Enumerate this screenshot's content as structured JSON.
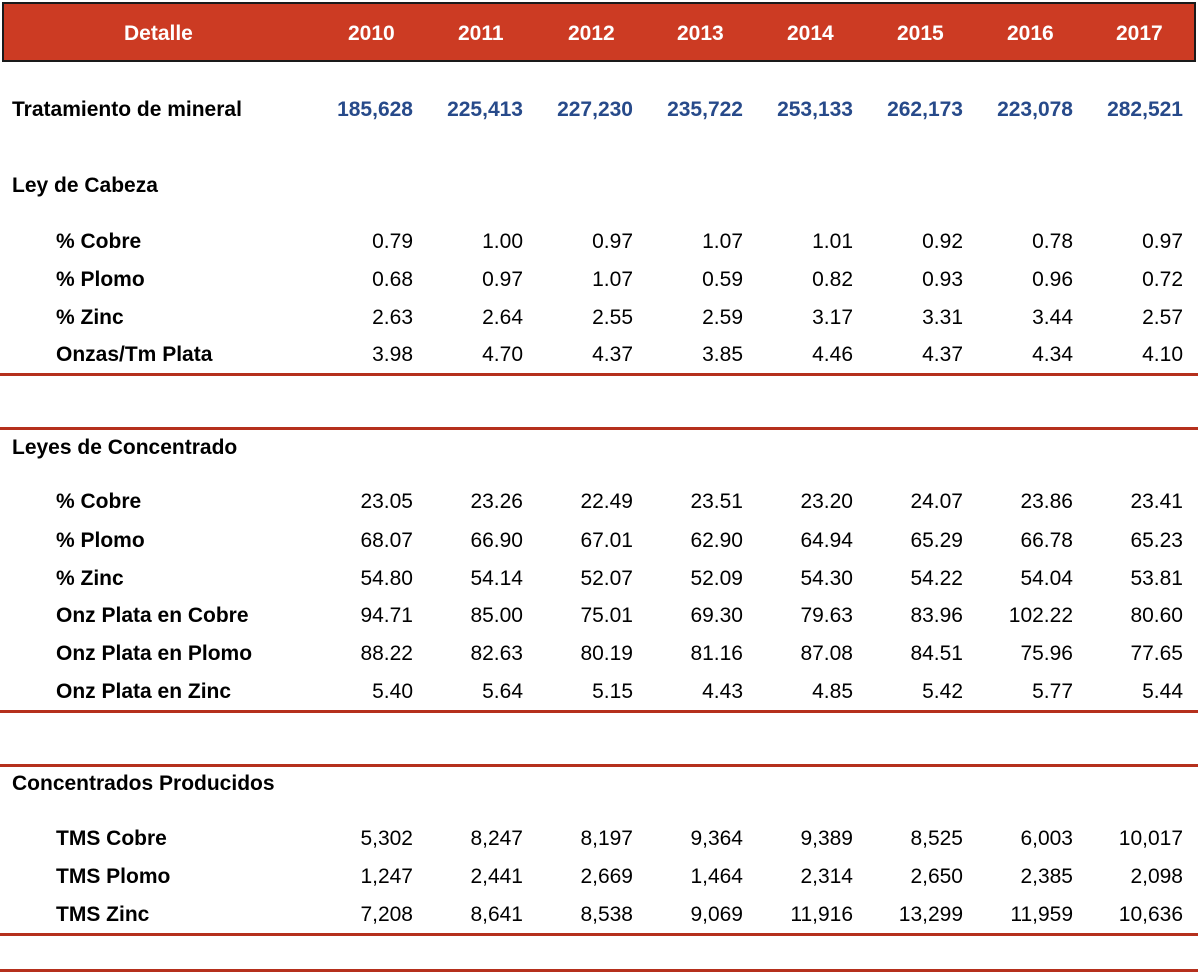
{
  "header": {
    "detalle": "Detalle",
    "years": [
      "2010",
      "2011",
      "2012",
      "2013",
      "2014",
      "2015",
      "2016",
      "2017"
    ]
  },
  "tratamiento": {
    "label": "Tratamiento de mineral",
    "values": [
      "185,628",
      "225,413",
      "227,230",
      "235,722",
      "253,133",
      "262,173",
      "223,078",
      "282,521"
    ]
  },
  "sections": [
    {
      "title": "Ley de Cabeza",
      "rows": [
        {
          "label": "% Cobre",
          "values": [
            "0.79",
            "1.00",
            "0.97",
            "1.07",
            "1.01",
            "0.92",
            "0.78",
            "0.97"
          ]
        },
        {
          "label": "% Plomo",
          "values": [
            "0.68",
            "0.97",
            "1.07",
            "0.59",
            "0.82",
            "0.93",
            "0.96",
            "0.72"
          ]
        },
        {
          "label": "% Zinc",
          "values": [
            "2.63",
            "2.64",
            "2.55",
            "2.59",
            "3.17",
            "3.31",
            "3.44",
            "2.57"
          ]
        },
        {
          "label": "Onzas/Tm Plata",
          "values": [
            "3.98",
            "4.70",
            "4.37",
            "3.85",
            "4.46",
            "4.37",
            "4.34",
            "4.10"
          ]
        }
      ]
    },
    {
      "title": "Leyes de Concentrado",
      "rows": [
        {
          "label": "% Cobre",
          "values": [
            "23.05",
            "23.26",
            "22.49",
            "23.51",
            "23.20",
            "24.07",
            "23.86",
            "23.41"
          ]
        },
        {
          "label": "% Plomo",
          "values": [
            "68.07",
            "66.90",
            "67.01",
            "62.90",
            "64.94",
            "65.29",
            "66.78",
            "65.23"
          ]
        },
        {
          "label": "% Zinc",
          "values": [
            "54.80",
            "54.14",
            "52.07",
            "52.09",
            "54.30",
            "54.22",
            "54.04",
            "53.81"
          ]
        },
        {
          "label": "Onz Plata en Cobre",
          "values": [
            "94.71",
            "85.00",
            "75.01",
            "69.30",
            "79.63",
            "83.96",
            "102.22",
            "80.60"
          ]
        },
        {
          "label": "Onz Plata en Plomo",
          "values": [
            "88.22",
            "82.63",
            "80.19",
            "81.16",
            "87.08",
            "84.51",
            "75.96",
            "77.65"
          ]
        },
        {
          "label": "Onz Plata en Zinc",
          "values": [
            "5.40",
            "5.64",
            "5.15",
            "4.43",
            "4.85",
            "5.42",
            "5.77",
            "5.44"
          ]
        }
      ]
    },
    {
      "title": "Concentrados Producidos",
      "rows": [
        {
          "label": "TMS Cobre",
          "values": [
            "5,302",
            "8,247",
            "8,197",
            "9,364",
            "9,389",
            "8,525",
            "6,003",
            "10,017"
          ]
        },
        {
          "label": "TMS Plomo",
          "values": [
            "1,247",
            "2,441",
            "2,669",
            "1,464",
            "2,314",
            "2,650",
            "2,385",
            "2,098"
          ]
        },
        {
          "label": "TMS Zinc",
          "values": [
            "7,208",
            "8,641",
            "8,538",
            "9,069",
            "11,916",
            "13,299",
            "11,959",
            "10,636"
          ]
        }
      ]
    }
  ]
}
